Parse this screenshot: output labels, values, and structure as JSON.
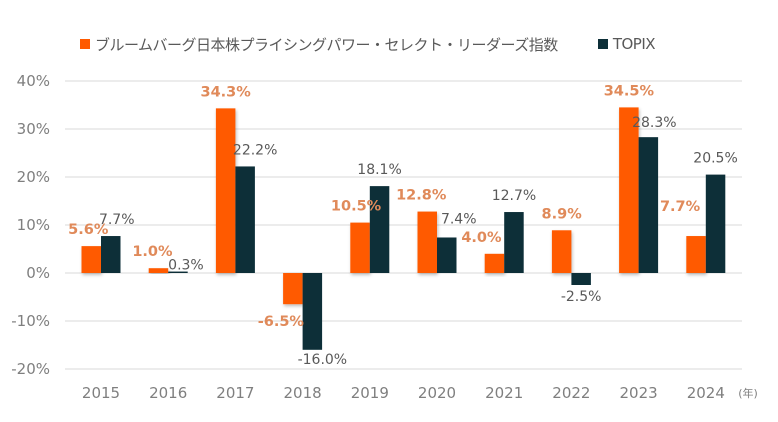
{
  "colors": {
    "series_a": "#ff5a00",
    "series_b": "#0d2f38",
    "label_a": "#e08a5a",
    "label_b": "#595959",
    "grid": "#d9d9d9",
    "tick": "#7f7f7f"
  },
  "chart_data": {
    "type": "bar",
    "title": "",
    "xlabel": "(年)",
    "ylabel": "",
    "categories": [
      "2015",
      "2016",
      "2017",
      "2018",
      "2019",
      "2020",
      "2021",
      "2022",
      "2023",
      "2024"
    ],
    "series": [
      {
        "name": "ブルームバーグ日本株プライシングパワー・セレクト・リーダーズ指数",
        "values": [
          5.6,
          1.0,
          34.3,
          -6.5,
          10.5,
          12.8,
          4.0,
          8.9,
          34.5,
          7.7
        ],
        "labels": [
          "5.6%",
          "1.0%",
          "34.3%",
          "-6.5%",
          "10.5%",
          "12.8%",
          "4.0%",
          "8.9%",
          "34.5%",
          "7.7%"
        ]
      },
      {
        "name": "TOPIX",
        "values": [
          7.7,
          0.3,
          22.2,
          -16.0,
          18.1,
          7.4,
          12.7,
          -2.5,
          28.3,
          20.5
        ],
        "labels": [
          "7.7%",
          "0.3%",
          "22.2%",
          "-16.0%",
          "18.1%",
          "7.4%",
          "12.7%",
          "-2.5%",
          "28.3%",
          "20.5%"
        ]
      }
    ],
    "ylim": [
      -20,
      40
    ],
    "yticks": [
      40,
      30,
      20,
      10,
      0,
      -10,
      -20
    ],
    "ytick_labels": [
      "40%",
      "30%",
      "20%",
      "10%",
      "0%",
      "-10%",
      "-20%"
    ],
    "grid": true,
    "legend": "top"
  }
}
